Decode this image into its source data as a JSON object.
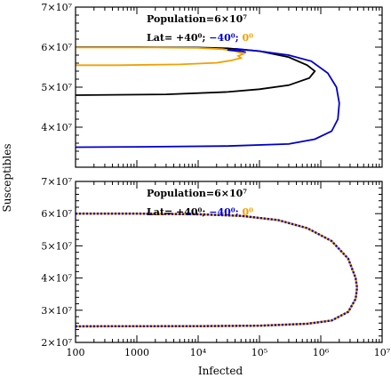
{
  "chart_data": [
    {
      "type": "line",
      "panel": "top",
      "x_scale": "log",
      "xlim": [
        100,
        10000000
      ],
      "ylim": [
        30000000,
        70000000
      ],
      "y_ticks": [
        {
          "value": 30000000,
          "label": ""
        },
        {
          "value": 40000000,
          "label": "4×10⁷"
        },
        {
          "value": 50000000,
          "label": "5×10⁷"
        },
        {
          "value": 60000000,
          "label": "6×10⁷"
        },
        {
          "value": 70000000,
          "label": "7×10⁷"
        }
      ],
      "annotation": {
        "population": "Population=6×10⁷",
        "lat_prefix": "Lat=",
        "lat_plus40": "+40⁰;",
        "lat_minus40": "−40⁰;",
        "lat_zero": "0⁰"
      },
      "colors": {
        "plus40": "#000000",
        "minus40": "#0000cc",
        "zero": "#f0a000"
      },
      "series": [
        {
          "color": "#000000",
          "points": [
            [
              100,
              60000000
            ],
            [
              1000,
              60000000
            ],
            [
              10000,
              59900000
            ],
            [
              30000,
              59700000
            ],
            [
              100000,
              59000000
            ],
            [
              300000,
              57500000
            ],
            [
              600000,
              55500000
            ],
            [
              800000,
              54000000
            ],
            [
              650000,
              52300000
            ],
            [
              300000,
              50500000
            ],
            [
              100000,
              49500000
            ],
            [
              30000,
              48800000
            ],
            [
              3000,
              48200000
            ],
            [
              100,
              48000000
            ]
          ]
        },
        {
          "color": "#0000cc",
          "points": [
            [
              40000,
              59600000
            ],
            [
              100000,
              59000000
            ],
            [
              300000,
              58000000
            ],
            [
              700000,
              56500000
            ],
            [
              1300000,
              53500000
            ],
            [
              1800000,
              50000000
            ],
            [
              2000000,
              46000000
            ],
            [
              1900000,
              42000000
            ],
            [
              1500000,
              39000000
            ],
            [
              800000,
              37000000
            ],
            [
              300000,
              35800000
            ],
            [
              30000,
              35300000
            ],
            [
              1000,
              35100000
            ],
            [
              100,
              35000000
            ]
          ]
        },
        {
          "color": "#f0a000",
          "points": [
            [
              100,
              59900000
            ],
            [
              2000,
              59900000
            ],
            [
              10000,
              59800000
            ],
            [
              25000,
              59500000
            ],
            [
              40000,
              59000000
            ],
            [
              55000,
              58300000
            ],
            [
              45000,
              57800000
            ],
            [
              50000,
              57300000
            ],
            [
              35000,
              56700000
            ],
            [
              20000,
              56100000
            ],
            [
              5000,
              55700000
            ],
            [
              500,
              55500000
            ],
            [
              100,
              55500000
            ]
          ]
        },
        {
          "color": "#0000cc",
          "points": [
            [
              30000,
              59300000
            ],
            [
              50000,
              59000000
            ],
            [
              60000,
              58700000
            ]
          ]
        }
      ]
    },
    {
      "type": "line",
      "panel": "bottom",
      "x_scale": "log",
      "xlim": [
        100,
        10000000
      ],
      "ylim": [
        20000000,
        70000000
      ],
      "x_ticks": [
        {
          "value": 100,
          "label": "100"
        },
        {
          "value": 1000,
          "label": "1000"
        },
        {
          "value": 10000,
          "label": "10⁴"
        },
        {
          "value": 100000,
          "label": "10⁵"
        },
        {
          "value": 1000000,
          "label": "10⁶"
        },
        {
          "value": 10000000,
          "label": "10⁷"
        }
      ],
      "y_ticks": [
        {
          "value": 20000000,
          "label": "2×10⁷"
        },
        {
          "value": 30000000,
          "label": "3×10⁷"
        },
        {
          "value": 40000000,
          "label": "4×10⁷"
        },
        {
          "value": 50000000,
          "label": "5×10⁷"
        },
        {
          "value": 60000000,
          "label": "6×10⁷"
        },
        {
          "value": 70000000,
          "label": "7×10⁷"
        }
      ],
      "annotation": {
        "population": "Population=6×10⁷",
        "lat_prefix": "Lat=",
        "lat_plus40": "+40⁰;",
        "lat_minus40": "−40⁰;",
        "lat_zero": "0⁰"
      },
      "colors": {
        "plus40": "#000000",
        "minus40": "#0000cc",
        "zero": "#f0a000"
      },
      "series": [
        {
          "style": "dashed-overlap",
          "colors": [
            "#0000cc",
            "#f0a000"
          ],
          "points": [
            [
              100,
              60000000
            ],
            [
              1000,
              60000000
            ],
            [
              10000,
              59800000
            ],
            [
              50000,
              59300000
            ],
            [
              200000,
              58000000
            ],
            [
              600000,
              55500000
            ],
            [
              1500000,
              51500000
            ],
            [
              2800000,
              46000000
            ],
            [
              3700000,
              40000000
            ],
            [
              3900000,
              37000000
            ],
            [
              3700000,
              33500000
            ],
            [
              2800000,
              29500000
            ],
            [
              1500000,
              26800000
            ],
            [
              600000,
              25800000
            ],
            [
              100000,
              25200000
            ],
            [
              10000,
              25050000
            ],
            [
              100,
              25000000
            ]
          ]
        }
      ]
    }
  ],
  "xlabel": "Infected",
  "ylabel": "Susceptibles"
}
